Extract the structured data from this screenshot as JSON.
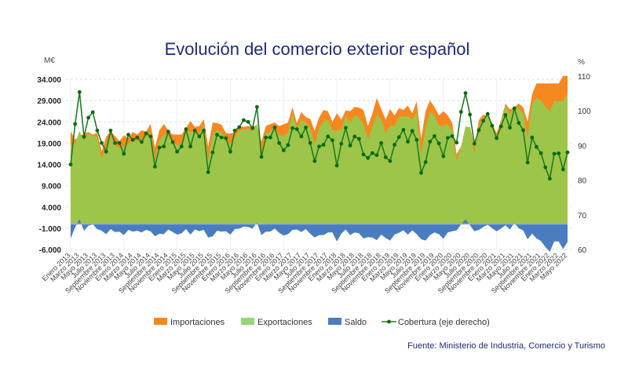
{
  "chart_data": {
    "type": "area",
    "title": "Evolución del comercio exterior español",
    "ylabel": "M€",
    "ylabel_right": "%",
    "ylim": [
      -6000,
      34000
    ],
    "ylim_right": [
      60,
      110
    ],
    "yticks": [
      "34.000",
      "29.000",
      "24.000",
      "19.000",
      "14.000",
      "9.000",
      "4.000",
      "-1.000",
      "-6.000"
    ],
    "yticks_values": [
      34000,
      29000,
      24000,
      19000,
      14000,
      9000,
      4000,
      -1000,
      -6000
    ],
    "yticks_right": [
      "110",
      "100",
      "90",
      "80",
      "70",
      "60"
    ],
    "yticks_right_values": [
      110,
      100,
      90,
      80,
      70,
      60
    ],
    "grid": true,
    "legend_position": "bottom",
    "x_range": [
      "Enero 2013",
      "Mayo 2022"
    ],
    "x_tick_labels": [
      "Enero 2013",
      "Marzo 2013",
      "Mayo 2013",
      "Julio 2013",
      "Septiembre 2013",
      "Noviembre 2013",
      "Enero 2014",
      "Marzo 2014",
      "Mayo 2014",
      "Julio 2014",
      "Septiembre 2014",
      "Noviembre 2014",
      "Enero 2015",
      "Marzo 2015",
      "Mayo 2015",
      "Julio 2015",
      "Septiembre 2015",
      "Noviembre 2015",
      "Enero 2016",
      "Marzo 2016",
      "Mayo 2016",
      "Julio 2016",
      "Septiembre 2016",
      "Noviembre 2016",
      "Enero 2017",
      "Marzo 2017",
      "Mayo 2017",
      "Julio 2017",
      "Septiembre 2017",
      "Noviembre 2017",
      "Enero 2018",
      "Marzo 2018",
      "Mayo 2018",
      "Julio 2018",
      "Septiembre 2018",
      "Noviembre 2018",
      "Enero 2019",
      "Marzo 2019",
      "Mayo 2019",
      "Julio 2019",
      "Septiembre 2019",
      "Noviembre 2019",
      "Enero 2020",
      "Marzo 2020",
      "Mayo 2020",
      "Julio 2020",
      "Septiembre 2020",
      "Noviembre 2020",
      "Enero 2021",
      "Marzo 2021",
      "Mayo 2021",
      "Julio 2021",
      "Septiembre 2021",
      "Noviembre 2021",
      "Enero 2022",
      "Marzo 2022",
      "Mayo 2022"
    ],
    "series": [
      {
        "name": "Importaciones",
        "axis": "left",
        "color": "#f7871f",
        "values": [
          21800,
          19800,
          20700,
          21200,
          21600,
          21000,
          21400,
          17000,
          20500,
          21800,
          20600,
          19500,
          20800,
          20200,
          21600,
          21000,
          22000,
          21700,
          23500,
          18000,
          22000,
          23500,
          22000,
          21000,
          21000,
          21000,
          22500,
          24200,
          22800,
          23000,
          24600,
          18200,
          23800,
          23700,
          23300,
          21400,
          21200,
          21500,
          23000,
          22800,
          23000,
          22900,
          23200,
          19400,
          23000,
          23500,
          23800,
          23000,
          23400,
          23800,
          27400,
          23700,
          26300,
          25100,
          24700,
          21900,
          25000,
          26800,
          26500,
          24000,
          26000,
          24500,
          26700,
          26500,
          27500,
          27300,
          26800,
          23000,
          25900,
          29600,
          27000,
          24500,
          27000,
          25500,
          27200,
          26800,
          27800,
          26000,
          28800,
          20000,
          26500,
          29000,
          27500,
          25500,
          26500,
          25500,
          23700,
          16400,
          18200,
          21900,
          22900,
          18200,
          24400,
          25700,
          25400,
          23700,
          21300,
          24400,
          28300,
          26900,
          27400,
          28300,
          27400,
          24000,
          30500,
          33000,
          33000,
          33000,
          33000,
          33000,
          33000,
          34800,
          34800
        ]
      },
      {
        "name": "Exportaciones",
        "axis": "left",
        "color": "#9dc549",
        "legend_color": "#92d878",
        "values": [
          18400,
          19000,
          21800,
          19600,
          21200,
          20900,
          20200,
          15400,
          18100,
          20600,
          18700,
          17700,
          18200,
          18800,
          19800,
          19400,
          20000,
          20300,
          21800,
          15100,
          19700,
          21100,
          20700,
          19100,
          18500,
          18800,
          21300,
          21700,
          21500,
          21300,
          23200,
          15000,
          20900,
          22100,
          21500,
          19700,
          18700,
          20300,
          21900,
          22200,
          22300,
          21800,
          23500,
          16800,
          21200,
          21700,
          22700,
          20900,
          20700,
          21400,
          26000,
          22400,
          24400,
          23900,
          22400,
          18700,
          22400,
          24200,
          24500,
          22000,
          21900,
          22200,
          25400,
          23900,
          25500,
          25100,
          23400,
          19900,
          22700,
          25800,
          24500,
          21200,
          23100,
          23000,
          25100,
          25300,
          25300,
          24500,
          26400,
          16400,
          22600,
          26400,
          25500,
          23100,
          23000,
          23500,
          22000,
          14900,
          18100,
          23000,
          22600,
          16500,
          23000,
          25000,
          25200,
          22700,
          19600,
          23300,
          28000,
          25600,
          27600,
          27300,
          25900,
          20400,
          28200,
          29600,
          29000,
          27600,
          26500,
          28900,
          28900,
          28900,
          30600
        ]
      },
      {
        "name": "Saldo",
        "axis": "left",
        "color": "#4a7cc0",
        "values": [
          -3400,
          -800,
          1100,
          -1600,
          -400,
          -100,
          -1200,
          -1600,
          -2400,
          -1200,
          -1900,
          -1800,
          -2600,
          -1400,
          -1800,
          -1600,
          -2000,
          -1400,
          -1700,
          -2900,
          -2300,
          -2400,
          -1300,
          -1900,
          -2500,
          -2200,
          -1200,
          -2500,
          -1300,
          -1700,
          -1400,
          -3200,
          -2900,
          -1600,
          -1800,
          -1700,
          -2500,
          -1200,
          -1100,
          -600,
          -700,
          -1100,
          300,
          -2600,
          -1800,
          -1800,
          -1100,
          -2100,
          -2700,
          -2400,
          -1400,
          -1300,
          -1900,
          -1200,
          -2300,
          -3200,
          -2600,
          -2600,
          -2000,
          -2000,
          -4100,
          -2300,
          -1300,
          -2600,
          -2000,
          -2200,
          -3400,
          -3100,
          -3200,
          -3800,
          -2500,
          -3300,
          -3900,
          -2500,
          -2100,
          -1500,
          -2500,
          -1500,
          -2400,
          -3600,
          -3900,
          -2600,
          -2000,
          -2400,
          -3500,
          -2000,
          -1700,
          -1500,
          -100,
          1100,
          -300,
          -1700,
          -1400,
          -700,
          -200,
          -1000,
          -1700,
          -1100,
          -300,
          -1300,
          200,
          -1000,
          -1500,
          -3600,
          -2300,
          -3400,
          -4000,
          -5400,
          -6500,
          -4100,
          -4100,
          -5900,
          -4200
        ]
      },
      {
        "name": "Cobertura (eje derecho)",
        "axis": "right",
        "color": "#1e7d1e",
        "values": [
          84.5,
          96.2,
          105.4,
          92.5,
          98,
          99.6,
          94.3,
          90.7,
          88.2,
          94.3,
          90.7,
          90.7,
          87.6,
          93.1,
          91.6,
          92.3,
          91,
          93.5,
          92.6,
          83.9,
          89.4,
          89.7,
          94,
          91,
          88.2,
          89.7,
          94.7,
          89.7,
          94.3,
          92.6,
          94.3,
          82.3,
          88,
          93.1,
          92.3,
          92.1,
          88.2,
          94.3,
          95.3,
          97.3,
          96.8,
          95,
          101.1,
          86.7,
          92.3,
          92.3,
          95.2,
          90.7,
          88.6,
          90.1,
          95,
          94.7,
          92.6,
          95.2,
          90.7,
          85.5,
          89.7,
          90.2,
          92.6,
          91.5,
          84.2,
          90.5,
          95.1,
          90,
          92.6,
          91.9,
          87.4,
          86.4,
          87.8,
          87.2,
          90.7,
          86.6,
          85.5,
          90.2,
          92.4,
          94.5,
          91.1,
          94.2,
          91.6,
          82.1,
          85.2,
          91.1,
          92.7,
          90.6,
          86.9,
          92.2,
          92.7,
          90.8,
          99.7,
          105.1,
          98.9,
          90.5,
          94.4,
          97.1,
          99.1,
          95.7,
          92.1,
          95.5,
          98.8,
          95.1,
          100.7,
          96.5,
          94.4,
          85.1,
          92.3,
          89.6,
          87.8,
          83.7,
          80.4,
          87.6,
          87.7,
          83.1,
          88
        ]
      }
    ],
    "source": "Fuente: Ministerio de Industria, Comercio y Turismo"
  }
}
